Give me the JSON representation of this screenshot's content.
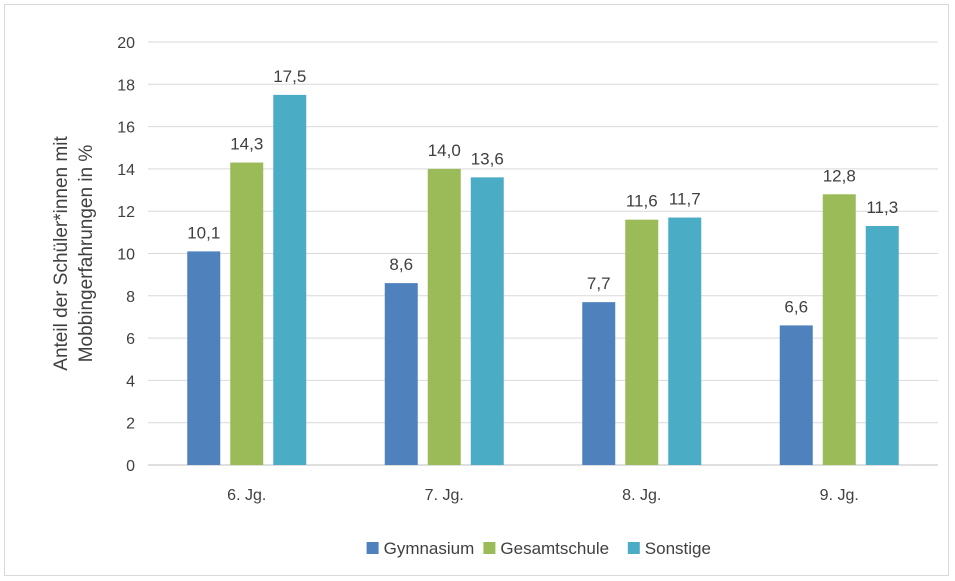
{
  "chart_data": {
    "type": "bar",
    "title": "",
    "xlabel": "",
    "ylabel": "Anteil der Schüler*innen mit Mobbingerfahrungen in %",
    "ylabel_lines": [
      "Anteil der Schüler*innen mit",
      "Mobbingerfahrungen in %"
    ],
    "ylim": [
      0,
      20
    ],
    "yticks": [
      0,
      2,
      4,
      6,
      8,
      10,
      12,
      14,
      16,
      18,
      20
    ],
    "grid": true,
    "legend_position": "bottom",
    "categories": [
      "6. Jg.",
      "7. Jg.",
      "8. Jg.",
      "9. Jg."
    ],
    "series": [
      {
        "name": "Gymnasium",
        "color": "#4f81bd",
        "values": [
          10.1,
          8.6,
          7.7,
          6.6
        ],
        "labels": [
          "10,1",
          "8,6",
          "7,7",
          "6,6"
        ]
      },
      {
        "name": "Gesamtschule",
        "color": "#9bbb59",
        "values": [
          14.3,
          14.0,
          11.6,
          12.8
        ],
        "labels": [
          "14,3",
          "14,0",
          "11,6",
          "12,8"
        ]
      },
      {
        "name": "Sonstige",
        "color": "#4bacc6",
        "values": [
          17.5,
          13.6,
          11.7,
          11.3
        ],
        "labels": [
          "17,5",
          "13,6",
          "11,7",
          "11,3"
        ]
      }
    ]
  }
}
